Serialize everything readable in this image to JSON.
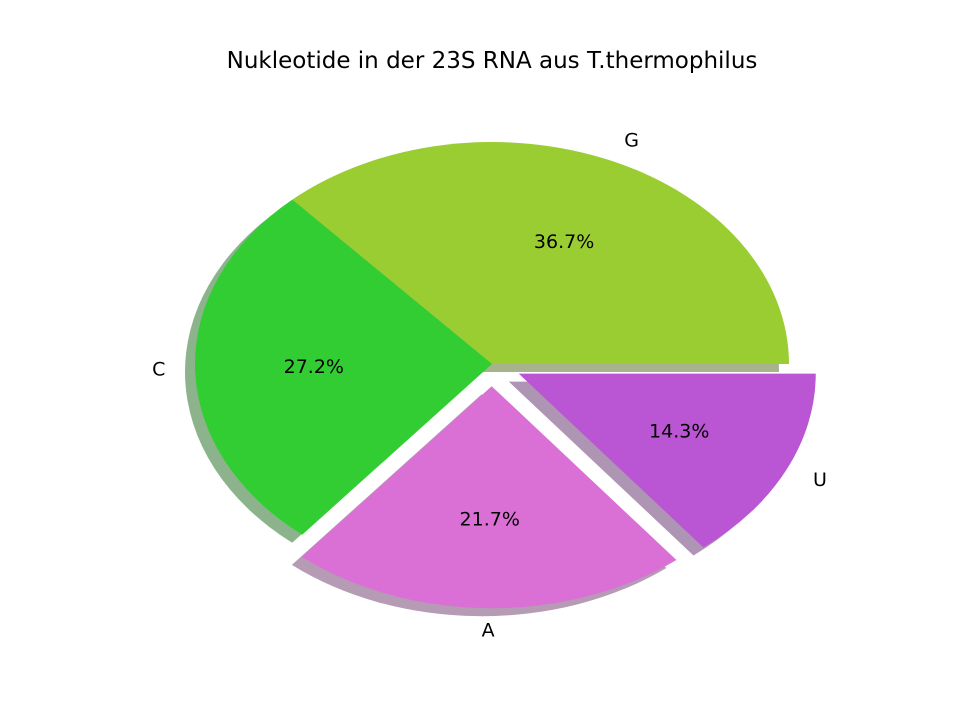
{
  "chart_data": {
    "type": "pie",
    "title": "Nukleotide in der 23S RNA aus T.thermophilus",
    "slices": [
      {
        "label": "G",
        "percent": 36.7,
        "pct_label": "36.7%",
        "color": "#9acd32",
        "exploded": false
      },
      {
        "label": "C",
        "percent": 27.2,
        "pct_label": "27.2%",
        "color": "#32cd32",
        "exploded": false
      },
      {
        "label": "A",
        "percent": 21.7,
        "pct_label": "21.7%",
        "color": "#da70d6",
        "exploded": true
      },
      {
        "label": "U",
        "percent": 14.3,
        "pct_label": "14.3%",
        "color": "#ba55d3",
        "exploded": true
      }
    ],
    "shadow": true,
    "start_angle_deg": 0,
    "direction": "counterclockwise"
  }
}
